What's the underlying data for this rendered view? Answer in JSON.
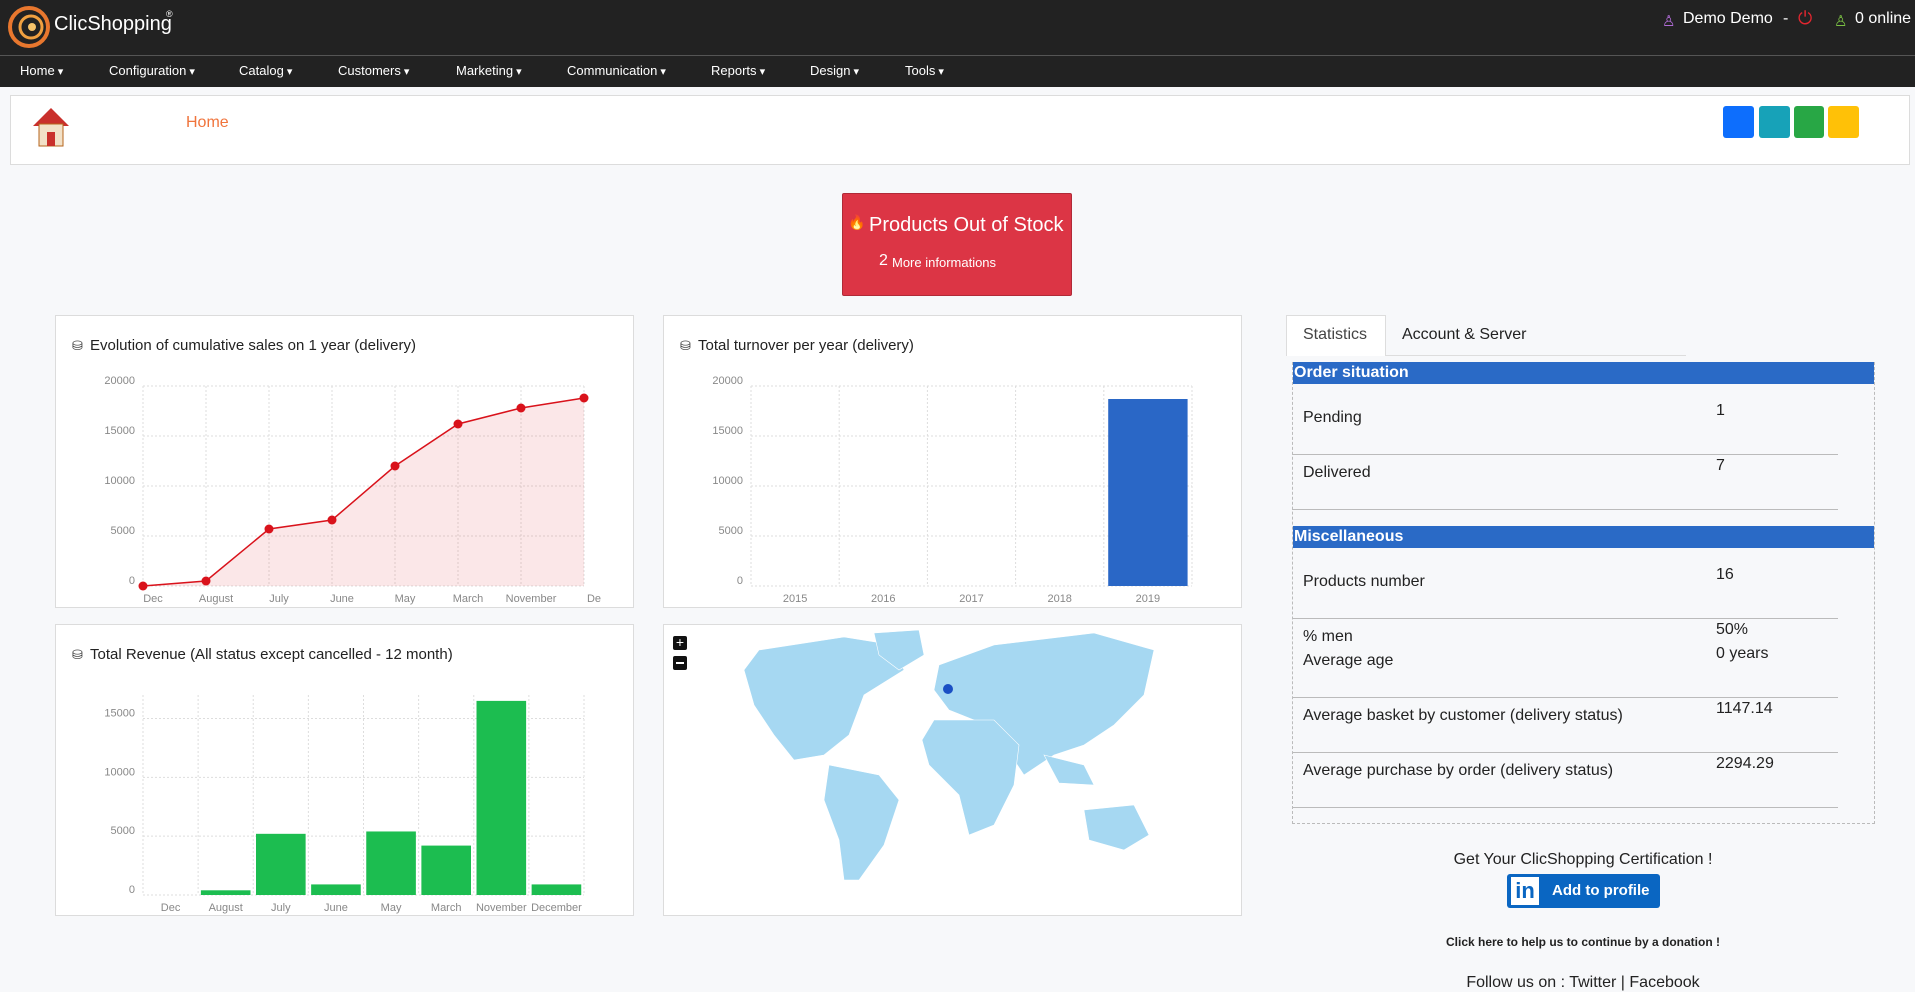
{
  "header": {
    "logo": "ClicShopping",
    "registered": "®",
    "user": "Demo Demo",
    "separator": "-",
    "online": "0 online"
  },
  "nav": [
    "Home",
    "Configuration",
    "Catalog",
    "Customers",
    "Marketing",
    "Communication",
    "Reports",
    "Design",
    "Tools"
  ],
  "breadcrumb": "Home",
  "alert": {
    "title": "Products Out of Stock",
    "count": 2,
    "link": "More informations"
  },
  "chart_data": [
    {
      "type": "line",
      "title": "Evolution of cumulative sales on 1 year (delivery)",
      "categories": [
        "Dec",
        "August",
        "July",
        "June",
        "May",
        "March",
        "November",
        "De"
      ],
      "values": [
        0,
        500,
        5700,
        6600,
        12000,
        16200,
        17800,
        18800
      ],
      "color": "#d9121b",
      "ylim": [
        0,
        20000
      ],
      "yticks": [
        0,
        5000,
        10000,
        15000,
        20000
      ],
      "grid": true
    },
    {
      "type": "bar",
      "title": "Total turnover per year (delivery)",
      "categories": [
        "2015",
        "2016",
        "2017",
        "2018",
        "2019"
      ],
      "values": [
        0,
        0,
        0,
        0,
        18700
      ],
      "color": "#2a67c6",
      "ylim": [
        0,
        20000
      ],
      "yticks": [
        0,
        5000,
        10000,
        15000,
        20000
      ],
      "grid": true
    },
    {
      "type": "bar",
      "title": "Total Revenue (All status except cancelled - 12 month)",
      "categories": [
        "Dec",
        "August",
        "July",
        "June",
        "May",
        "March",
        "November",
        "December"
      ],
      "values": [
        0,
        400,
        5200,
        900,
        5400,
        4200,
        16500,
        900
      ],
      "color": "#1cbd50",
      "ylim": [
        0,
        17000
      ],
      "yticks": [
        0,
        5000,
        10000,
        15000
      ],
      "grid": true
    }
  ],
  "stats": {
    "tabs": [
      "Statistics",
      "Account & Server"
    ],
    "order_situation": {
      "title": "Order situation",
      "rows": [
        [
          "Pending",
          1
        ],
        [
          "Delivered",
          7
        ]
      ]
    },
    "miscellaneous": {
      "title": "Miscellaneous",
      "rows": [
        [
          "Products number",
          16
        ],
        [
          "% men",
          "50%"
        ],
        [
          "Average age",
          "0 years"
        ],
        [
          "Average basket by customer (delivery status)",
          1147.14
        ],
        [
          "Average purchase by order (delivery status)",
          2294.29
        ]
      ]
    }
  },
  "footer": {
    "certification": "Get Your ClicShopping Certification !",
    "badge": "in",
    "button": "Add to profile",
    "donation": "Click here to help us to continue by a donation !",
    "follow": "Follow us on :",
    "twitter": "Twitter",
    "bar": "|",
    "facebook": "Facebook"
  }
}
